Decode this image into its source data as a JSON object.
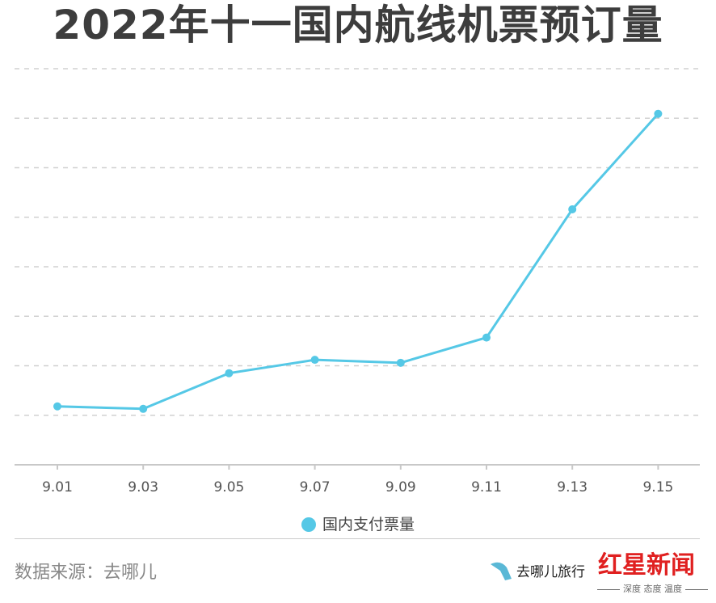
{
  "chart_data": {
    "type": "line",
    "title": "2022年十一国内航线机票预订量",
    "categories": [
      "9.01",
      "9.03",
      "9.05",
      "9.07",
      "9.09",
      "9.11",
      "9.13",
      "9.15"
    ],
    "series": [
      {
        "name": "国内支付票量",
        "values": [
          1.18,
          1.13,
          1.85,
          2.12,
          2.06,
          2.57,
          5.16,
          7.09
        ],
        "color": "#55c8e6"
      }
    ],
    "ylim": [
      0,
      8
    ],
    "y_ticks_labeled": false,
    "grid": true,
    "legend": "bottom"
  },
  "footer": {
    "source": "数据来源：去哪儿",
    "logo_text": "红星新闻",
    "logo_sub": "深度 态度 温度",
    "logo_partner": "去哪儿旅行"
  }
}
